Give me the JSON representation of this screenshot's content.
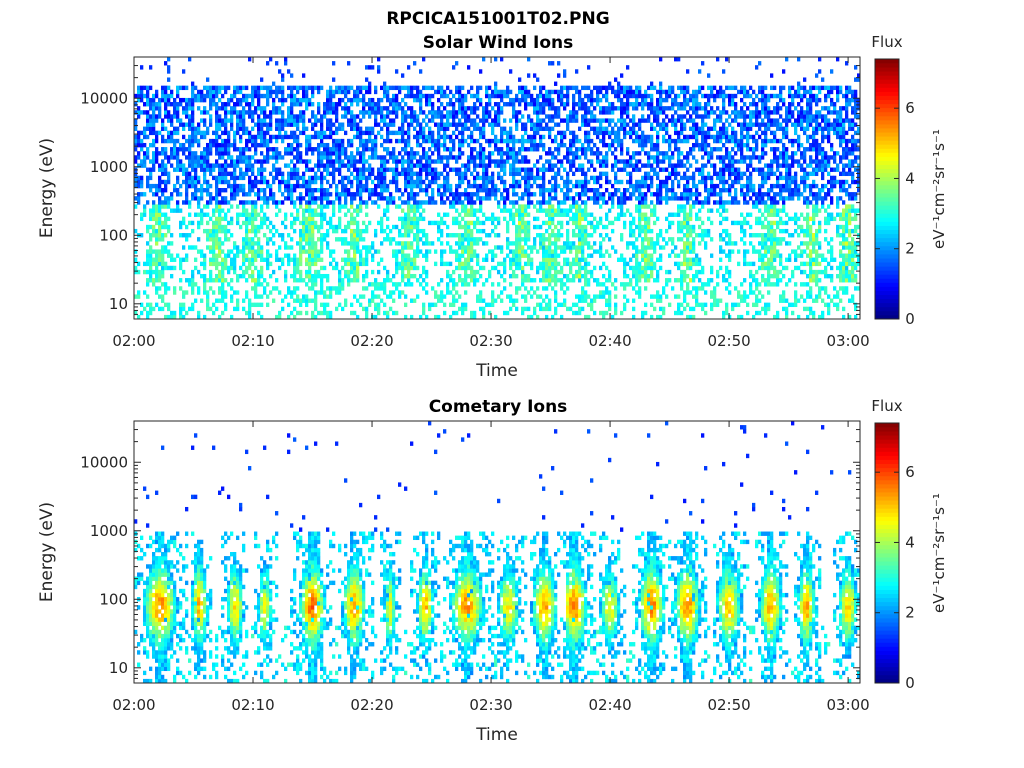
{
  "figure": {
    "title": "RPCICA151001T02.PNG"
  },
  "chart_data": [
    {
      "type": "heatmap",
      "title": "Solar Wind Ions",
      "xlabel": "Time",
      "ylabel": "Energy (eV)",
      "x_range": [
        "02:00",
        "03:01"
      ],
      "x_ticks": [
        "02:00",
        "02:10",
        "02:20",
        "02:30",
        "02:40",
        "02:50",
        "03:00"
      ],
      "y_scale": "log",
      "y_range": [
        6,
        40000
      ],
      "y_ticks": [
        {
          "value": 10,
          "label": "10"
        },
        {
          "value": 100,
          "label": "100"
        },
        {
          "value": 1000,
          "label": "1000"
        },
        {
          "value": 10000,
          "label": "10000"
        }
      ],
      "colorbar": {
        "title": "Flux",
        "range": [
          0,
          7.4
        ],
        "ticks": [
          0,
          2,
          4,
          6
        ],
        "unit": "eV⁻¹cm⁻²sr⁻¹s⁻¹",
        "colormap": "jet"
      },
      "profile": {
        "description_values": "dense high-energy scatter 300-15000 eV at flux ~1-2.5; low-energy bands 20-300 eV at flux ~2.5-4",
        "burst_times_min": [
          2,
          7,
          10,
          14.5,
          15,
          18.5,
          23,
          28,
          32.5,
          35,
          37.5,
          43,
          46.5,
          53.5,
          57,
          60
        ],
        "peak_flux": 4.6
      }
    },
    {
      "type": "heatmap",
      "title": "Cometary Ions",
      "xlabel": "Time",
      "ylabel": "Energy (eV)",
      "x_range": [
        "02:00",
        "03:01"
      ],
      "x_ticks": [
        "02:00",
        "02:10",
        "02:20",
        "02:30",
        "02:40",
        "02:50",
        "03:00"
      ],
      "y_scale": "log",
      "y_range": [
        6,
        40000
      ],
      "y_ticks": [
        {
          "value": 10,
          "label": "10"
        },
        {
          "value": 100,
          "label": "100"
        },
        {
          "value": 1000,
          "label": "1000"
        },
        {
          "value": 10000,
          "label": "10000"
        }
      ],
      "colorbar": {
        "title": "Flux",
        "range": [
          0,
          7.4
        ],
        "ticks": [
          0,
          2,
          4,
          6
        ],
        "unit": "eV⁻¹cm⁻²sr⁻¹s⁻¹",
        "colormap": "jet"
      },
      "profile": {
        "description_values": "bursts between 20 and 800 eV peaking near 60-100 eV at flux up to ~5.5; sparse points above 1000 eV",
        "bursts": [
          {
            "t": 2.2,
            "flux": 5.2,
            "width": 2.6
          },
          {
            "t": 5.5,
            "flux": 4.9,
            "width": 1.3
          },
          {
            "t": 8.5,
            "flux": 4.6,
            "width": 1.4
          },
          {
            "t": 11,
            "flux": 4.3,
            "width": 1.2
          },
          {
            "t": 15,
            "flux": 5.4,
            "width": 2.0
          },
          {
            "t": 18.5,
            "flux": 5.1,
            "width": 1.8
          },
          {
            "t": 21.5,
            "flux": 4.3,
            "width": 1.0
          },
          {
            "t": 24.5,
            "flux": 4.8,
            "width": 1.4
          },
          {
            "t": 28,
            "flux": 5.1,
            "width": 2.6
          },
          {
            "t": 31.5,
            "flux": 4.5,
            "width": 1.8
          },
          {
            "t": 34.5,
            "flux": 5.0,
            "width": 2.0
          },
          {
            "t": 37,
            "flux": 5.3,
            "width": 2.0
          },
          {
            "t": 40,
            "flux": 4.4,
            "width": 1.6
          },
          {
            "t": 43.5,
            "flux": 5.3,
            "width": 2.0
          },
          {
            "t": 46.5,
            "flux": 5.2,
            "width": 2.0
          },
          {
            "t": 50,
            "flux": 4.8,
            "width": 2.0
          },
          {
            "t": 53.5,
            "flux": 5.0,
            "width": 1.8
          },
          {
            "t": 56.5,
            "flux": 5.0,
            "width": 1.4
          },
          {
            "t": 60,
            "flux": 4.6,
            "width": 1.6
          }
        ],
        "peak_flux": 5.5
      }
    }
  ]
}
